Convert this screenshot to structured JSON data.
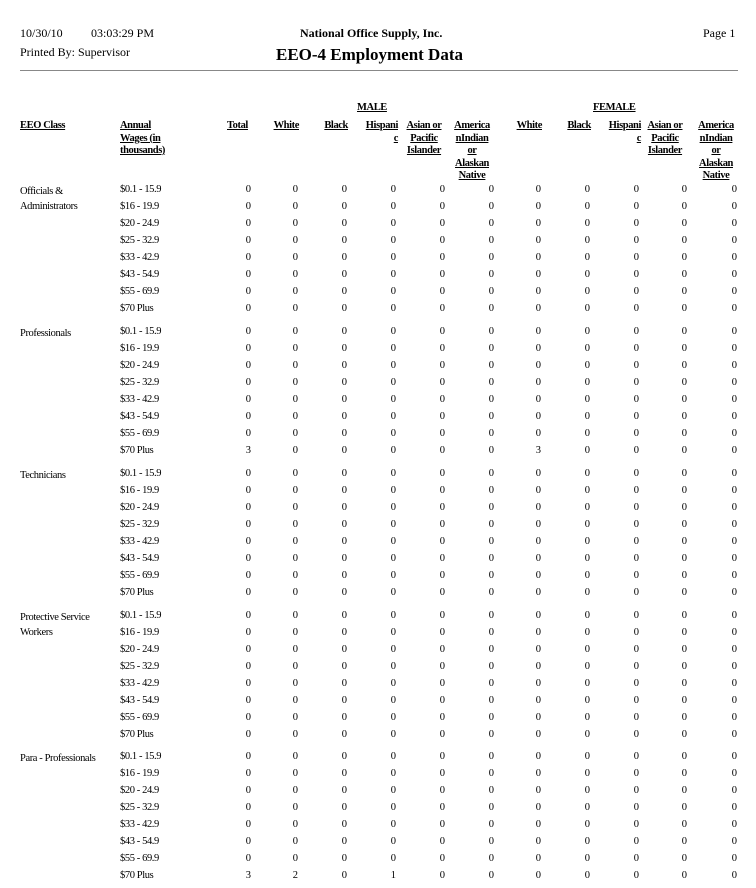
{
  "header": {
    "date": "10/30/10",
    "time": "03:03:29 PM",
    "printed_by": "Printed By: Supervisor",
    "company": "National Office Supply, Inc.",
    "title": "EEO-4 Employment Data",
    "page": "Page 1"
  },
  "columns": {
    "eeo_class": "EEO Class",
    "wages": [
      "Annual",
      "Wages (in",
      "thousands)"
    ],
    "male": "MALE",
    "female": "FEMALE",
    "total": "Total",
    "male_cols": [
      [
        "White"
      ],
      [
        "Black"
      ],
      [
        "Hispani",
        "c"
      ],
      [
        "Asian or",
        "Pacific",
        "Islander"
      ],
      [
        "America",
        "nIndian",
        "or",
        "Alaskan",
        "Native"
      ]
    ],
    "female_cols": [
      [
        "White"
      ],
      [
        "Black"
      ],
      [
        "Hispani",
        "c"
      ],
      [
        "Asian or",
        "Pacific",
        "Islander"
      ],
      [
        "America",
        "nIndian",
        "or",
        "Alaskan",
        "Native"
      ]
    ]
  },
  "wage_bands": [
    "$0.1 - 15.9",
    "$16 - 19.9",
    "$20 - 24.9",
    "$25 - 32.9",
    "$33 - 42.9",
    "$43 - 54.9",
    "$55 - 69.9",
    "$70 Plus"
  ],
  "groups": [
    {
      "class": [
        "Officials &",
        "Administrators"
      ],
      "rows": [
        [
          0,
          0,
          0,
          0,
          0,
          0,
          0,
          0,
          0,
          0,
          0
        ],
        [
          0,
          0,
          0,
          0,
          0,
          0,
          0,
          0,
          0,
          0,
          0
        ],
        [
          0,
          0,
          0,
          0,
          0,
          0,
          0,
          0,
          0,
          0,
          0
        ],
        [
          0,
          0,
          0,
          0,
          0,
          0,
          0,
          0,
          0,
          0,
          0
        ],
        [
          0,
          0,
          0,
          0,
          0,
          0,
          0,
          0,
          0,
          0,
          0
        ],
        [
          0,
          0,
          0,
          0,
          0,
          0,
          0,
          0,
          0,
          0,
          0
        ],
        [
          0,
          0,
          0,
          0,
          0,
          0,
          0,
          0,
          0,
          0,
          0
        ],
        [
          0,
          0,
          0,
          0,
          0,
          0,
          0,
          0,
          0,
          0,
          0
        ]
      ]
    },
    {
      "class": [
        "Professionals"
      ],
      "rows": [
        [
          0,
          0,
          0,
          0,
          0,
          0,
          0,
          0,
          0,
          0,
          0
        ],
        [
          0,
          0,
          0,
          0,
          0,
          0,
          0,
          0,
          0,
          0,
          0
        ],
        [
          0,
          0,
          0,
          0,
          0,
          0,
          0,
          0,
          0,
          0,
          0
        ],
        [
          0,
          0,
          0,
          0,
          0,
          0,
          0,
          0,
          0,
          0,
          0
        ],
        [
          0,
          0,
          0,
          0,
          0,
          0,
          0,
          0,
          0,
          0,
          0
        ],
        [
          0,
          0,
          0,
          0,
          0,
          0,
          0,
          0,
          0,
          0,
          0
        ],
        [
          0,
          0,
          0,
          0,
          0,
          0,
          0,
          0,
          0,
          0,
          0
        ],
        [
          3,
          0,
          0,
          0,
          0,
          0,
          3,
          0,
          0,
          0,
          0
        ]
      ]
    },
    {
      "class": [
        "Technicians"
      ],
      "rows": [
        [
          0,
          0,
          0,
          0,
          0,
          0,
          0,
          0,
          0,
          0,
          0
        ],
        [
          0,
          0,
          0,
          0,
          0,
          0,
          0,
          0,
          0,
          0,
          0
        ],
        [
          0,
          0,
          0,
          0,
          0,
          0,
          0,
          0,
          0,
          0,
          0
        ],
        [
          0,
          0,
          0,
          0,
          0,
          0,
          0,
          0,
          0,
          0,
          0
        ],
        [
          0,
          0,
          0,
          0,
          0,
          0,
          0,
          0,
          0,
          0,
          0
        ],
        [
          0,
          0,
          0,
          0,
          0,
          0,
          0,
          0,
          0,
          0,
          0
        ],
        [
          0,
          0,
          0,
          0,
          0,
          0,
          0,
          0,
          0,
          0,
          0
        ],
        [
          0,
          0,
          0,
          0,
          0,
          0,
          0,
          0,
          0,
          0,
          0
        ]
      ]
    },
    {
      "class": [
        "Protective Service",
        "Workers"
      ],
      "rows": [
        [
          0,
          0,
          0,
          0,
          0,
          0,
          0,
          0,
          0,
          0,
          0
        ],
        [
          0,
          0,
          0,
          0,
          0,
          0,
          0,
          0,
          0,
          0,
          0
        ],
        [
          0,
          0,
          0,
          0,
          0,
          0,
          0,
          0,
          0,
          0,
          0
        ],
        [
          0,
          0,
          0,
          0,
          0,
          0,
          0,
          0,
          0,
          0,
          0
        ],
        [
          0,
          0,
          0,
          0,
          0,
          0,
          0,
          0,
          0,
          0,
          0
        ],
        [
          0,
          0,
          0,
          0,
          0,
          0,
          0,
          0,
          0,
          0,
          0
        ],
        [
          0,
          0,
          0,
          0,
          0,
          0,
          0,
          0,
          0,
          0,
          0
        ],
        [
          0,
          0,
          0,
          0,
          0,
          0,
          0,
          0,
          0,
          0,
          0
        ]
      ]
    },
    {
      "class": [
        "Para - Professionals"
      ],
      "rows": [
        [
          0,
          0,
          0,
          0,
          0,
          0,
          0,
          0,
          0,
          0,
          0
        ],
        [
          0,
          0,
          0,
          0,
          0,
          0,
          0,
          0,
          0,
          0,
          0
        ],
        [
          0,
          0,
          0,
          0,
          0,
          0,
          0,
          0,
          0,
          0,
          0
        ],
        [
          0,
          0,
          0,
          0,
          0,
          0,
          0,
          0,
          0,
          0,
          0
        ],
        [
          0,
          0,
          0,
          0,
          0,
          0,
          0,
          0,
          0,
          0,
          0
        ],
        [
          0,
          0,
          0,
          0,
          0,
          0,
          0,
          0,
          0,
          0,
          0
        ],
        [
          0,
          0,
          0,
          0,
          0,
          0,
          0,
          0,
          0,
          0,
          0
        ],
        [
          3,
          2,
          0,
          1,
          0,
          0,
          0,
          0,
          0,
          0,
          0
        ]
      ]
    }
  ]
}
